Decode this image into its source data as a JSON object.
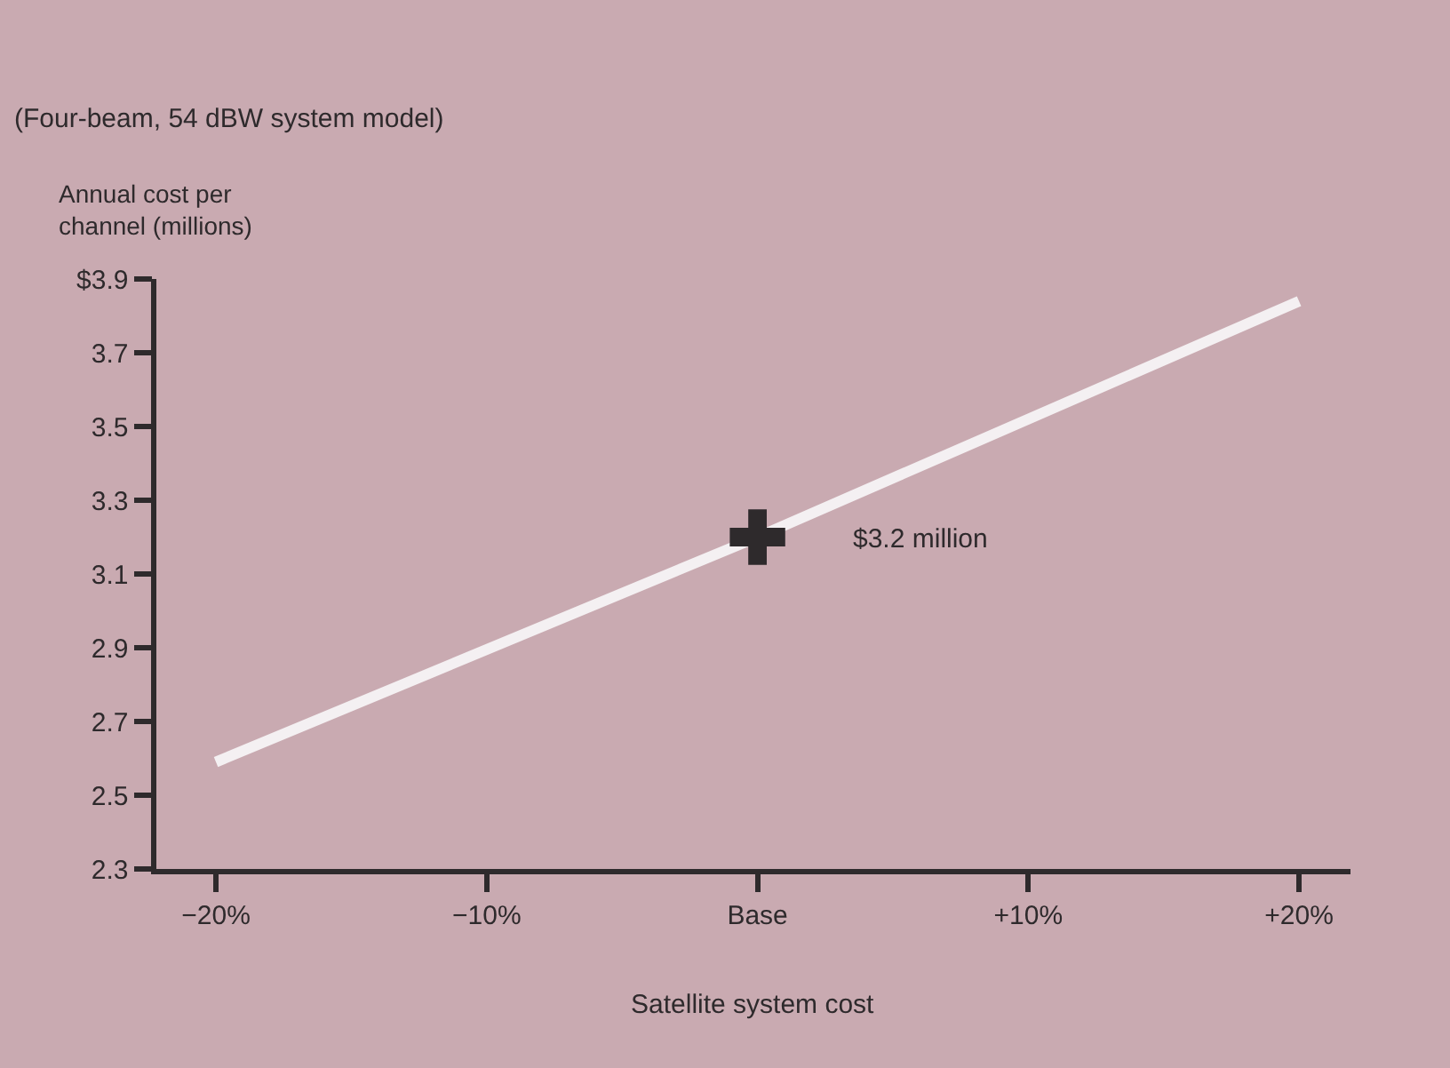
{
  "chart_data": {
    "type": "line",
    "title": "(Four-beam, 54 dBW system model)",
    "ylabel": "Annual cost per\nchannel (millions)",
    "xlabel": "Satellite system cost",
    "series": [
      {
        "color": "#f4f0f2",
        "x": [
          -20,
          0,
          20
        ],
        "values": [
          2.59,
          3.2,
          3.84
        ],
        "marker": "none"
      },
      {
        "type": "scatter",
        "color": "#2e2a2c",
        "x": [
          0
        ],
        "values": [
          3.2
        ],
        "marker": "cross"
      }
    ],
    "annotations": [
      "$3.2 million"
    ],
    "xlim": [
      -22.2,
      21.9
    ],
    "ylim": [
      2.3,
      3.9
    ],
    "xticks": [
      {
        "value": -20,
        "label": "−20%"
      },
      {
        "value": -10,
        "label": "−10%"
      },
      {
        "value": 0,
        "label": "Base"
      },
      {
        "value": 10,
        "label": "+10%"
      },
      {
        "value": 20,
        "label": "+20%"
      }
    ],
    "yticks": [
      2.3,
      2.5,
      2.7,
      2.9,
      3.1,
      3.3,
      3.5,
      3.7,
      {
        "value": 3.9,
        "label": "$3.9"
      }
    ],
    "grid": false,
    "legend": false
  }
}
